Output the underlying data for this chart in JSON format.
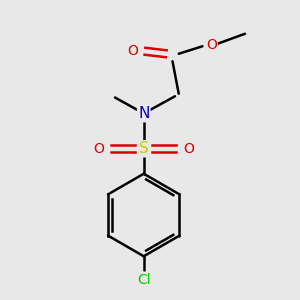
{
  "bg_color": "#e8e8e8",
  "atom_colors": {
    "C": "#000000",
    "N": "#0000cc",
    "O": "#dd0000",
    "S": "#cccc00",
    "Cl": "#00cc00"
  },
  "bond_color": "#000000",
  "bond_width": 1.8,
  "font_size": 10
}
